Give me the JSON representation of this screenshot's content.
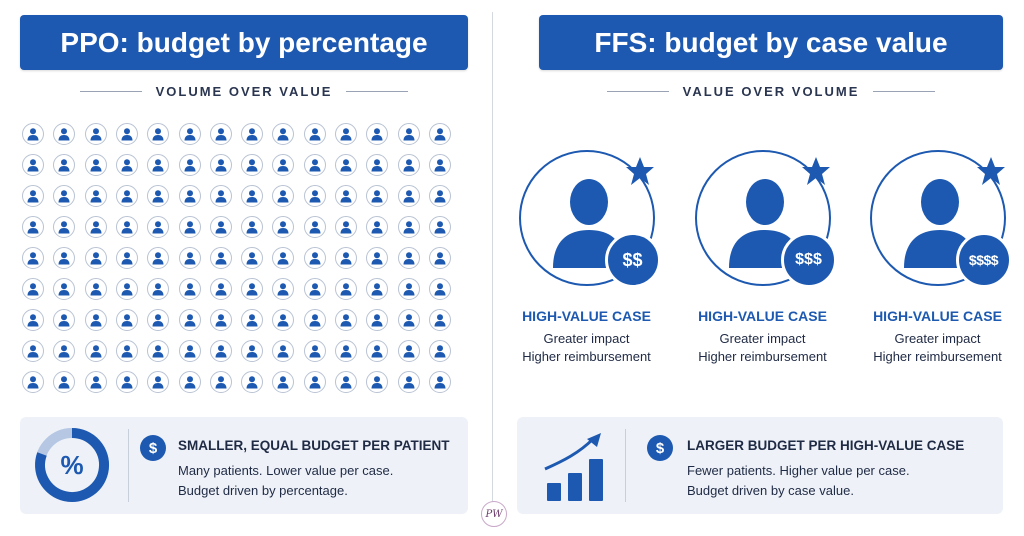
{
  "left": {
    "banner": "PPO: budget by percentage",
    "subheading": "VOLUME OVER VALUE",
    "grid": {
      "rows": 9,
      "cols": 14,
      "icon": "person-icon"
    },
    "panel": {
      "icon": "percent-ring-icon",
      "badge": "$",
      "title": "SMALLER, EQUAL BUDGET PER PATIENT",
      "line1": "Many patients. Lower value per case.",
      "line2": "Budget driven by percentage."
    }
  },
  "right": {
    "banner": "FFS: budget by case value",
    "subheading": "VALUE OVER VOLUME",
    "cases": [
      {
        "money": "$$",
        "title": "HIGH-VALUE CASE",
        "line1": "Greater impact",
        "line2": "Higher reimbursement"
      },
      {
        "money": "$$$",
        "title": "HIGH-VALUE CASE",
        "line1": "Greater impact",
        "line2": "Higher reimbursement"
      },
      {
        "money": "$$$$",
        "title": "HIGH-VALUE CASE",
        "line1": "Greater impact",
        "line2": "Higher reimbursement"
      }
    ],
    "panel": {
      "icon": "rising-bar-chart-icon",
      "badge": "$",
      "title": "LARGER BUDGET PER HIGH-VALUE CASE",
      "line1": "Fewer patients. Higher value per case.",
      "line2": "Budget driven by case value."
    }
  },
  "logo_text": "PW",
  "colors": {
    "primary": "#1d59b0",
    "panel_bg": "#eef2f8",
    "text": "#1f2a44",
    "ring": "#b9c3d3"
  }
}
